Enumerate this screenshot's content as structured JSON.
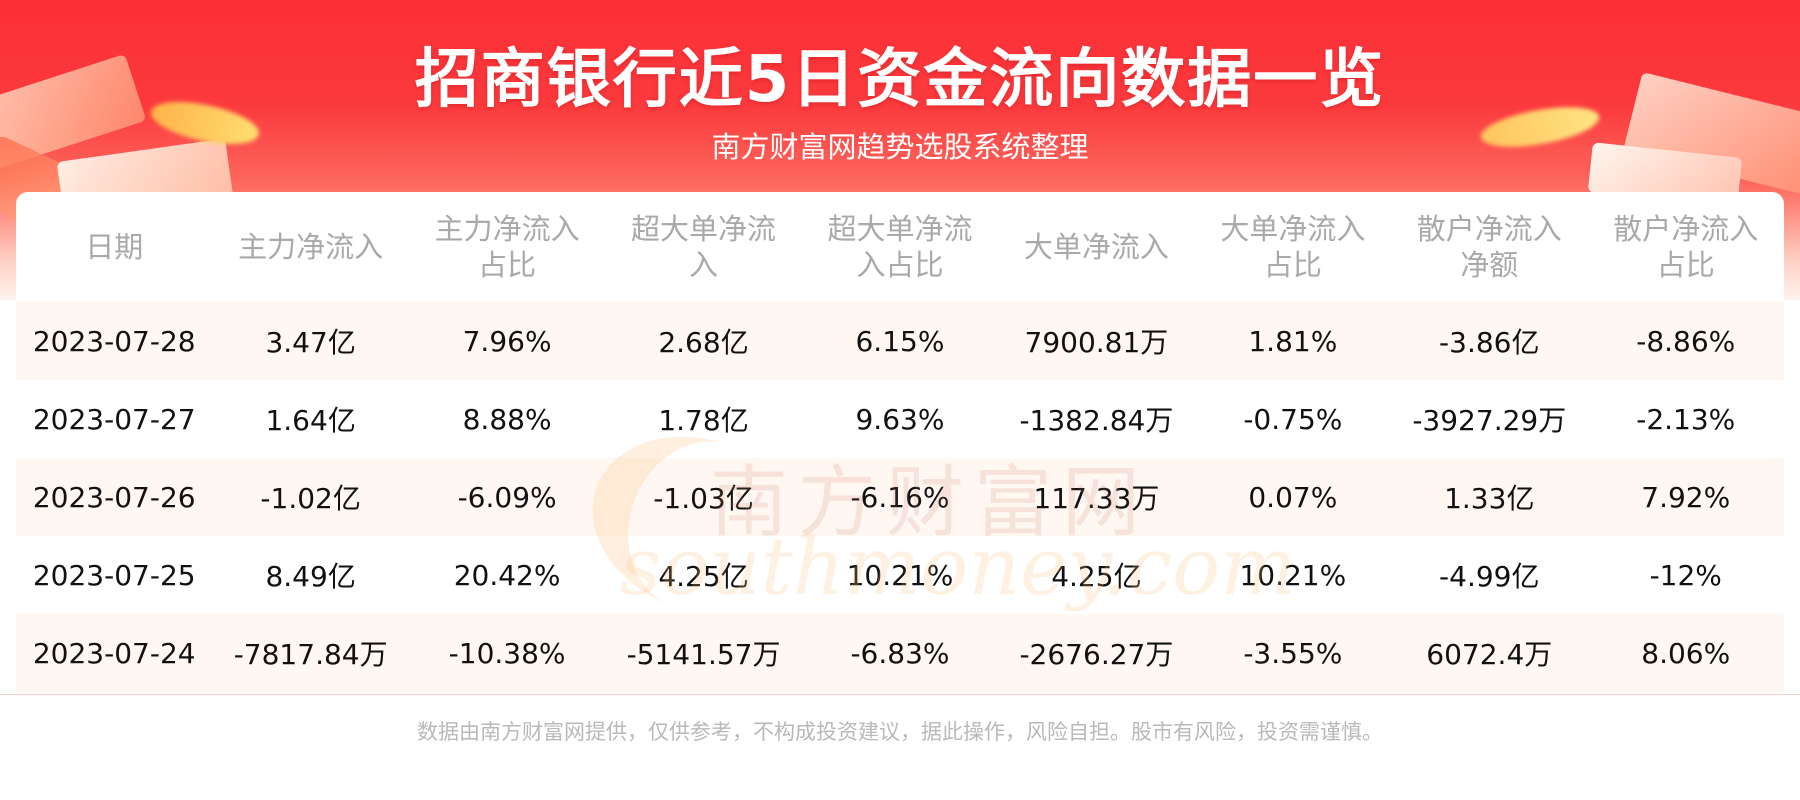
{
  "header": {
    "title": "招商银行近5日资金流向数据一览",
    "subtitle": "南方财富网趋势选股系统整理"
  },
  "table": {
    "headers": [
      [
        "日期"
      ],
      [
        "主力净流入"
      ],
      [
        "主力净流入",
        "占比"
      ],
      [
        "超大单净流",
        "入"
      ],
      [
        "超大单净流",
        "入占比"
      ],
      [
        "大单净流入"
      ],
      [
        "大单净流入",
        "占比"
      ],
      [
        "散户净流入",
        "净额"
      ],
      [
        "散户净流入",
        "占比"
      ]
    ],
    "rows": [
      [
        "2023-07-28",
        "3.47亿",
        "7.96%",
        "2.68亿",
        "6.15%",
        "7900.81万",
        "1.81%",
        "-3.86亿",
        "-8.86%"
      ],
      [
        "2023-07-27",
        "1.64亿",
        "8.88%",
        "1.78亿",
        "9.63%",
        "-1382.84万",
        "-0.75%",
        "-3927.29万",
        "-2.13%"
      ],
      [
        "2023-07-26",
        "-1.02亿",
        "-6.09%",
        "-1.03亿",
        "-6.16%",
        "117.33万",
        "0.07%",
        "1.33亿",
        "7.92%"
      ],
      [
        "2023-07-25",
        "8.49亿",
        "20.42%",
        "4.25亿",
        "10.21%",
        "4.25亿",
        "10.21%",
        "-4.99亿",
        "-12%"
      ],
      [
        "2023-07-24",
        "-7817.84万",
        "-10.38%",
        "-5141.57万",
        "-6.83%",
        "-2676.27万",
        "-3.55%",
        "6072.4万",
        "8.06%"
      ]
    ]
  },
  "watermark": {
    "cn": "南方财富网",
    "en": "southmoney.com"
  },
  "footer": {
    "disclaimer": "数据由南方财富网提供，仅供参考，不构成投资建议，据此操作，风险自担。股市有风险，投资需谨慎。"
  },
  "colors": {
    "brand_red": "#fb2f36",
    "header_text": "#a9a9a9",
    "stripe": "#fff8f2"
  }
}
